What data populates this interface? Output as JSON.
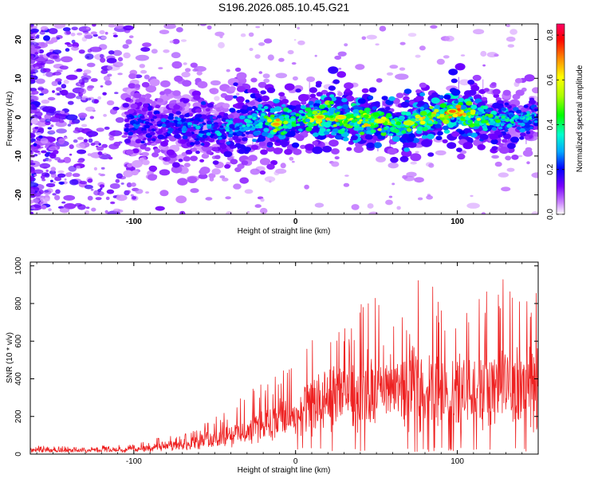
{
  "chart_data": [
    {
      "type": "heatmap",
      "title": "S196.2026.085.10.45.G21",
      "xlabel": "Height of straight line (km)",
      "ylabel": "Frequency (Hz)",
      "xlim": [
        -164,
        150
      ],
      "ylim": [
        -25,
        24
      ],
      "x_ticks": [
        -100,
        0,
        100
      ],
      "x_tick_labels": [
        "-100",
        "0",
        "100"
      ],
      "y_ticks": [
        -20,
        -10,
        0,
        10,
        20
      ],
      "y_tick_labels": [
        "-20",
        "-10",
        "0",
        "10",
        "20"
      ],
      "colorbar": {
        "label": "Normalized spectral amplitude",
        "range": [
          0.0,
          0.85
        ],
        "ticks": [
          0.0,
          0.2,
          0.4,
          0.6,
          0.8
        ],
        "tick_labels": [
          "0.0",
          "0.2",
          "0.4",
          "0.6",
          "0.8"
        ],
        "colors": [
          "#ffffff",
          "#cc88ff",
          "#7700ff",
          "#0000ff",
          "#00aaff",
          "#00ffcc",
          "#00ff00",
          "#aaff00",
          "#ffff00",
          "#ff8800",
          "#ff0000",
          "#ff0066"
        ]
      },
      "ridge": {
        "description_points": [
          {
            "x": -100,
            "freq": -1.5,
            "amp": 0.3
          },
          {
            "x": -50,
            "freq": -3,
            "amp": 0.35
          },
          {
            "x": -20,
            "freq": -1,
            "amp": 0.5
          },
          {
            "x": -12,
            "freq": -1.8,
            "amp": 0.8
          },
          {
            "x": 0,
            "freq": -1,
            "amp": 0.45
          },
          {
            "x": 15,
            "freq": 0,
            "amp": 0.8
          },
          {
            "x": 28,
            "freq": 0,
            "amp": 0.75
          },
          {
            "x": 52,
            "freq": -1,
            "amp": 0.7
          },
          {
            "x": 70,
            "freq": -1.5,
            "amp": 0.65
          },
          {
            "x": 97,
            "freq": 1.5,
            "amp": 0.85
          },
          {
            "x": 125,
            "freq": -1,
            "amp": 0.5
          },
          {
            "x": 150,
            "freq": 0,
            "amp": 0.4
          }
        ]
      }
    },
    {
      "type": "line",
      "title": "",
      "xlabel": "Height of straight line (km)",
      "ylabel": "SNR (10 * v/v)",
      "xlim": [
        -164,
        150
      ],
      "ylim": [
        0,
        1020
      ],
      "x_ticks": [
        -100,
        0,
        100
      ],
      "x_tick_labels": [
        "-100",
        "0",
        "100"
      ],
      "y_ticks": [
        0,
        200,
        400,
        600,
        800,
        1000
      ],
      "y_tick_labels": [
        "0",
        "200",
        "400",
        "600",
        "800",
        "1000"
      ],
      "series": [
        {
          "name": "SNR",
          "color": "#ee2222",
          "envelope": {
            "x": [
              -164,
              -140,
              -120,
              -100,
              -90,
              -80,
              -70,
              -60,
              -50,
              -40,
              -30,
              -20,
              -10,
              0,
              10,
              20,
              30,
              40,
              50,
              60,
              70,
              80,
              90,
              100,
              110,
              120,
              130,
              140,
              150
            ],
            "base": [
              18,
              18,
              20,
              22,
              30,
              40,
              50,
              60,
              75,
              90,
              110,
              140,
              160,
              180,
              230,
              270,
              280,
              300,
              300,
              310,
              300,
              320,
              310,
              300,
              320,
              310,
              330,
              320,
              320
            ],
            "peak": [
              45,
              40,
              45,
              50,
              75,
              100,
              120,
              150,
              200,
              250,
              330,
              380,
              440,
              500,
              620,
              700,
              720,
              800,
              980,
              880,
              840,
              990,
              850,
              820,
              900,
              880,
              1020,
              950,
              960
            ]
          }
        }
      ]
    }
  ]
}
